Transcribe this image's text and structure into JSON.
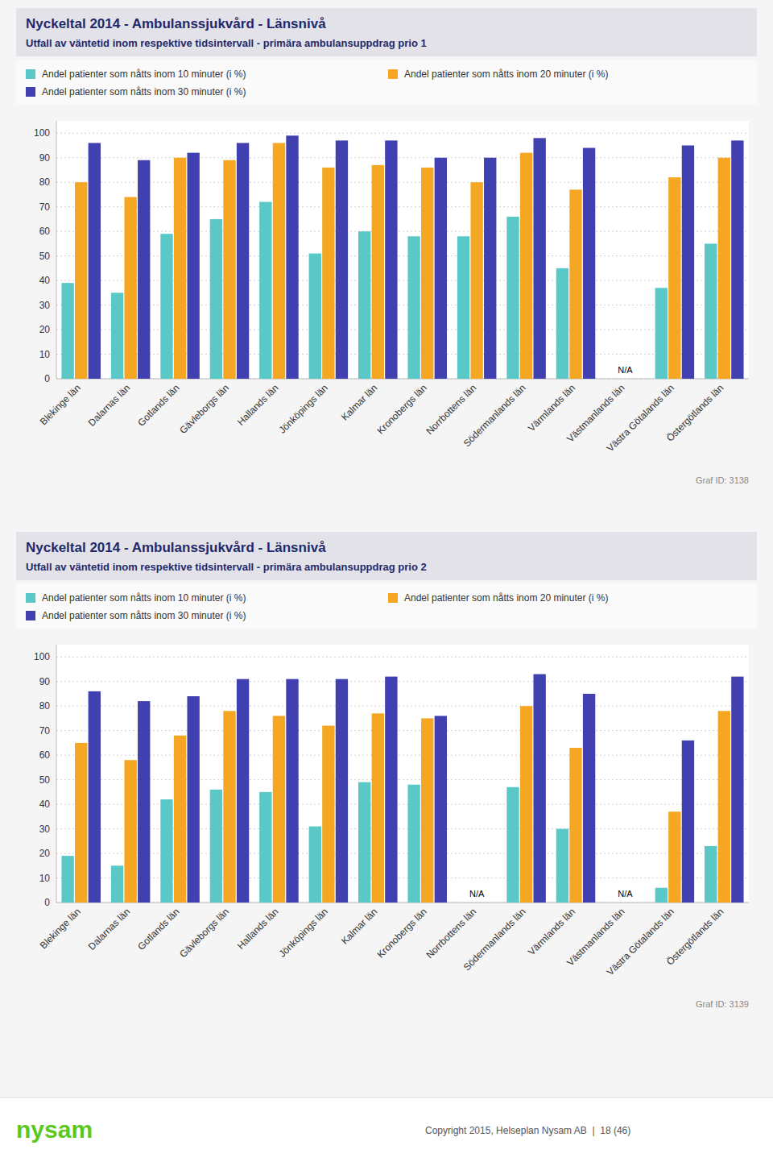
{
  "chart_data": [
    {
      "type": "bar",
      "title": "Nyckeltal 2014 - Ambulanssjukvård - Länsnivå",
      "subtitle": "Utfall av väntetid inom respektive tidsintervall - primära ambulansuppdrag prio 1",
      "categories": [
        "Blekinge län",
        "Dalarnas län",
        "Gotlands län",
        "Gävleborgs län",
        "Hallands län",
        "Jönköpings län",
        "Kalmar län",
        "Kronobergs län",
        "Norrbottens län",
        "Södermanlands län",
        "Värmlands län",
        "Västmanlands län",
        "Västra Götalands län",
        "Östergötlands län"
      ],
      "series": [
        {
          "name": "Andel patienter som nåtts inom 10 minuter (i %)",
          "color": "#5bc8c8",
          "values": [
            39,
            35,
            59,
            65,
            72,
            51,
            60,
            58,
            58,
            66,
            45,
            null,
            37,
            55
          ]
        },
        {
          "name": "Andel patienter som nåtts inom 20 minuter (i %)",
          "color": "#f5a623",
          "values": [
            80,
            74,
            90,
            89,
            96,
            86,
            87,
            86,
            80,
            92,
            77,
            null,
            82,
            90
          ]
        },
        {
          "name": "Andel patienter som nåtts inom 30 minuter (i %)",
          "color": "#4040b0",
          "values": [
            96,
            89,
            92,
            96,
            99,
            97,
            97,
            90,
            90,
            98,
            94,
            null,
            95,
            97
          ]
        }
      ],
      "ylim": [
        0,
        105
      ],
      "yticks": [
        0,
        10,
        20,
        30,
        40,
        50,
        60,
        70,
        80,
        90,
        100
      ],
      "grid": true,
      "legend": "top",
      "annotations": [
        {
          "text": "N/A",
          "x": "Västmanlands län",
          "y": 1.5
        },
        {
          "text": "Graf ID: 3138"
        }
      ]
    },
    {
      "type": "bar",
      "title": "Nyckeltal 2014 - Ambulanssjukvård - Länsnivå",
      "subtitle": "Utfall av väntetid inom respektive tidsintervall - primära ambulansuppdrag prio 2",
      "categories": [
        "Blekinge län",
        "Dalarnas län",
        "Gotlands län",
        "Gävleborgs län",
        "Hallands län",
        "Jönköpings län",
        "Kalmar län",
        "Kronobergs län",
        "Norrbottens län",
        "Södermanlands län",
        "Värmlands län",
        "Västmanlands län",
        "Västra Götalands län",
        "Östergötlands län"
      ],
      "series": [
        {
          "name": "Andel patienter som nåtts inom 10 minuter (i %)",
          "color": "#5bc8c8",
          "values": [
            19,
            15,
            42,
            46,
            45,
            31,
            49,
            48,
            null,
            47,
            30,
            null,
            6,
            23
          ]
        },
        {
          "name": "Andel patienter som nåtts inom 20 minuter (i %)",
          "color": "#f5a623",
          "values": [
            65,
            58,
            68,
            78,
            76,
            72,
            77,
            75,
            null,
            80,
            63,
            null,
            37,
            78
          ]
        },
        {
          "name": "Andel patienter som nåtts inom 30 minuter (i %)",
          "color": "#4040b0",
          "values": [
            86,
            82,
            84,
            91,
            91,
            91,
            92,
            76,
            null,
            93,
            85,
            null,
            66,
            92
          ]
        }
      ],
      "ylim": [
        0,
        105
      ],
      "yticks": [
        0,
        10,
        20,
        30,
        40,
        50,
        60,
        70,
        80,
        90,
        100
      ],
      "grid": true,
      "legend": "top",
      "annotations": [
        {
          "text": "N/A",
          "x": "Norrbottens län",
          "y": 1.5
        },
        {
          "text": "N/A",
          "x": "Västmanlands län",
          "y": 1.5
        },
        {
          "text": "Graf ID: 3139"
        }
      ]
    }
  ],
  "annotations": [
    {
      "text": "nysam"
    },
    {
      "text": "Copyright 2015, Helseplan Nysam AB  |  18 (46)"
    }
  ]
}
